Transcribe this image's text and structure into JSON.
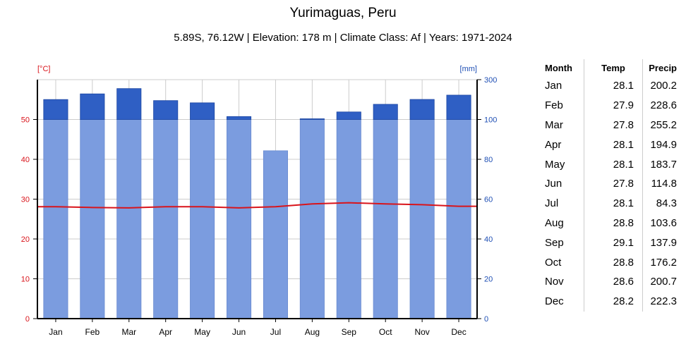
{
  "title": "Yurimaguas, Peru",
  "subtitle": "5.89S, 76.12W | Elevation: 178 m | Climate Class: Af | Years: 1971-2024",
  "colors": {
    "temp": "#d9141b",
    "precip_axis": "#1f4fb4",
    "bar_light": "#7b9cdf",
    "bar_dark": "#2f5fc4",
    "grid": "#cccccc"
  },
  "chart_data": {
    "type": "bar",
    "categories": [
      "Jan",
      "Feb",
      "Mar",
      "Apr",
      "May",
      "Jun",
      "Jul",
      "Aug",
      "Sep",
      "Oct",
      "Nov",
      "Dec"
    ],
    "series": [
      {
        "type": "bar",
        "axis": "right",
        "values": [
          200.2,
          228.6,
          255.2,
          194.9,
          183.7,
          114.8,
          84.3,
          103.6,
          137.9,
          176.2,
          200.7,
          222.3
        ]
      },
      {
        "type": "line",
        "axis": "left",
        "values": [
          28.1,
          27.9,
          27.8,
          28.1,
          28.1,
          27.8,
          28.1,
          28.8,
          29.1,
          28.8,
          28.6,
          28.2
        ]
      }
    ],
    "left_axis": {
      "label": "[°C]",
      "ticks": [
        0,
        10,
        20,
        30,
        40,
        50
      ],
      "range": [
        0,
        60
      ]
    },
    "right_axis": {
      "label": "[mm]",
      "ticks": [
        0,
        20,
        40,
        60,
        80,
        100,
        300
      ],
      "range": [
        0,
        300
      ],
      "break_at": 100
    },
    "grid": true
  },
  "table": {
    "headers": [
      "Month",
      "Temp",
      "Precip"
    ],
    "rows": [
      [
        "Jan",
        "28.1",
        "200.2"
      ],
      [
        "Feb",
        "27.9",
        "228.6"
      ],
      [
        "Mar",
        "27.8",
        "255.2"
      ],
      [
        "Apr",
        "28.1",
        "194.9"
      ],
      [
        "May",
        "28.1",
        "183.7"
      ],
      [
        "Jun",
        "27.8",
        "114.8"
      ],
      [
        "Jul",
        "28.1",
        "84.3"
      ],
      [
        "Aug",
        "28.8",
        "103.6"
      ],
      [
        "Sep",
        "29.1",
        "137.9"
      ],
      [
        "Oct",
        "28.8",
        "176.2"
      ],
      [
        "Nov",
        "28.6",
        "200.7"
      ],
      [
        "Dec",
        "28.2",
        "222.3"
      ]
    ]
  }
}
